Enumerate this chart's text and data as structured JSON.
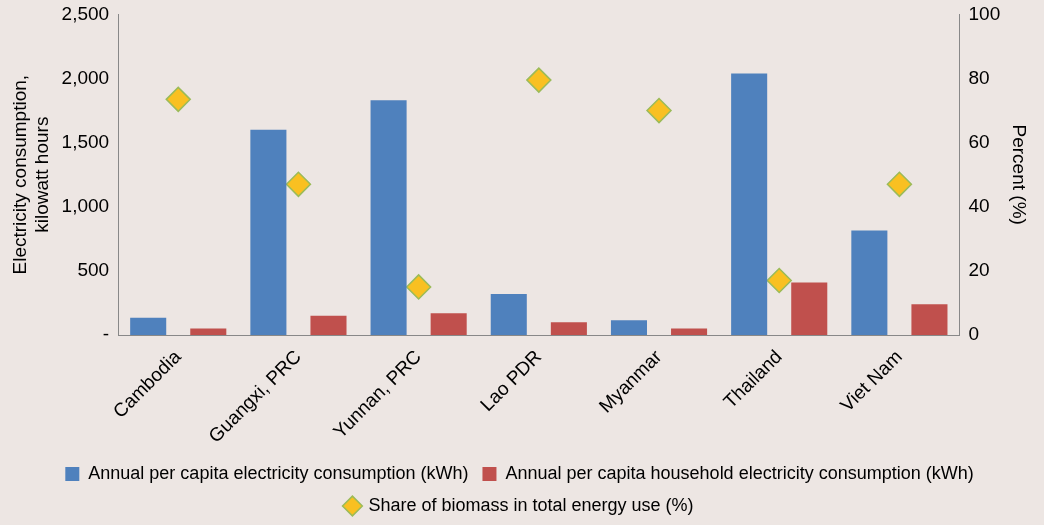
{
  "chart_data": {
    "type": "bar",
    "ylabel": "Electricity consumption, kilowatt hours",
    "y2label": "Percent (%)",
    "categories": [
      "Cambodia",
      "Guangxi, PRC",
      "Yunnan, PRC",
      "Lao PDR",
      "Myanmar",
      "Thailand",
      "Viet Nam"
    ],
    "series": [
      {
        "name": "Annual per capita electricity consumption (kWh)",
        "color": "#4f81bd",
        "values": [
          135,
          1600,
          1830,
          320,
          115,
          2040,
          815
        ]
      },
      {
        "name": "Annual per capita household electricity consumption (kWh)",
        "color": "#c0504d",
        "values": [
          50,
          150,
          170,
          100,
          50,
          410,
          240
        ]
      },
      {
        "name": "Share of biomass in total energy use (%)",
        "type": "scatter",
        "axis": "y2",
        "marker": "diamond",
        "color": "#f9c021",
        "values": [
          73.5,
          47,
          15,
          79.5,
          70,
          17,
          47
        ]
      }
    ],
    "ylim": [
      0,
      2500
    ],
    "yticks": [
      {
        "value": 0,
        "label": "-"
      },
      {
        "value": 500,
        "label": "500"
      },
      {
        "value": 1000,
        "label": "1,000"
      },
      {
        "value": 1500,
        "label": "1,500"
      },
      {
        "value": 2000,
        "label": "2,000"
      },
      {
        "value": 2500,
        "label": "2,500"
      }
    ],
    "y2lim": [
      0,
      100
    ],
    "y2ticks": [
      0,
      20,
      40,
      60,
      80,
      100
    ],
    "grid": false,
    "legend": "bottom"
  }
}
